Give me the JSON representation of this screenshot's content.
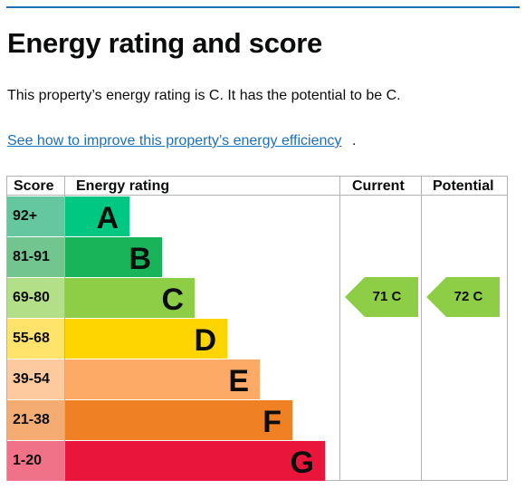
{
  "page": {
    "title": "Energy rating and score",
    "summary": "This property’s energy rating is C. It has the potential to be C.",
    "link_text": "See how to improve this property’s energy efficiency",
    "link_suffix": "."
  },
  "table": {
    "headers": {
      "score": "Score",
      "rating": "Energy rating",
      "current": "Current",
      "potential": "Potential"
    },
    "bands": [
      {
        "score": "92+",
        "letter": "A",
        "color": "#00c781",
        "score_bg": "#64c7a0"
      },
      {
        "score": "81-91",
        "letter": "B",
        "color": "#19b459",
        "score_bg": "#72c58f"
      },
      {
        "score": "69-80",
        "letter": "C",
        "color": "#8dce46",
        "score_bg": "#b3df88"
      },
      {
        "score": "55-68",
        "letter": "D",
        "color": "#ffd500",
        "score_bg": "#ffe36a"
      },
      {
        "score": "39-54",
        "letter": "E",
        "color": "#fcaa65",
        "score_bg": "#fdcaa0"
      },
      {
        "score": "21-38",
        "letter": "F",
        "color": "#ef8023",
        "score_bg": "#f4ac72"
      },
      {
        "score": "1-20",
        "letter": "G",
        "color": "#e9153b",
        "score_bg": "#f07289"
      }
    ],
    "current": {
      "label": "71 C",
      "band": "C",
      "color": "#8dce46"
    },
    "potential": {
      "label": "72 C",
      "band": "C",
      "color": "#8dce46"
    }
  }
}
